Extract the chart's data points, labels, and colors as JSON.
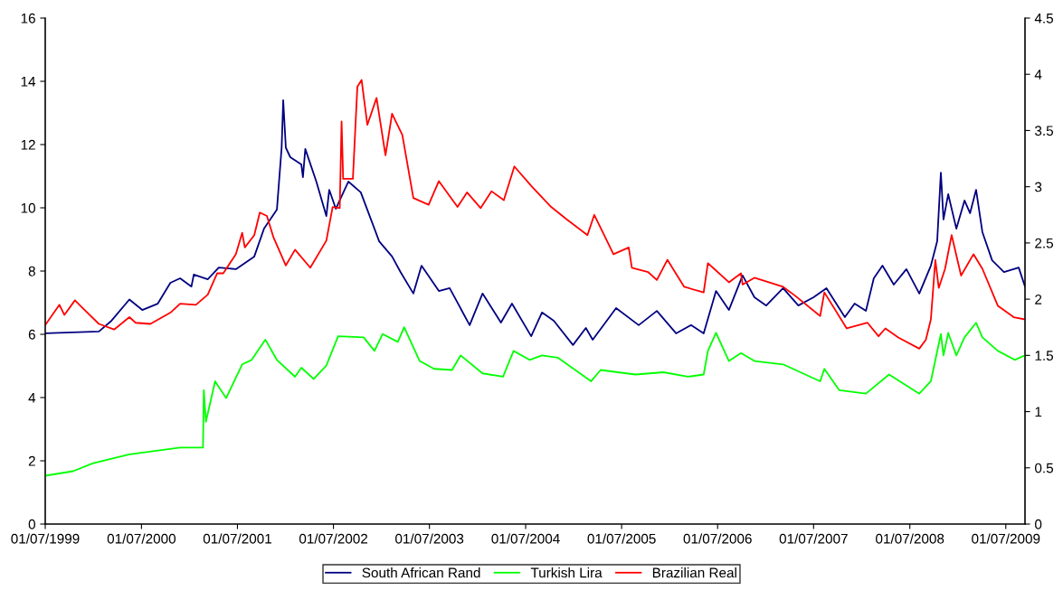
{
  "chart_data": {
    "type": "line",
    "xlim": [
      "1999-07-01",
      "2009-09-12"
    ],
    "xticks": [
      {
        "value": "1999-07-01",
        "label": "01/07/1999"
      },
      {
        "value": "2000-07-01",
        "label": "01/07/2000"
      },
      {
        "value": "2001-07-01",
        "label": "01/07/2001"
      },
      {
        "value": "2002-07-01",
        "label": "01/07/2002"
      },
      {
        "value": "2003-07-01",
        "label": "01/07/2003"
      },
      {
        "value": "2004-07-01",
        "label": "01/07/2004"
      },
      {
        "value": "2005-07-01",
        "label": "01/07/2005"
      },
      {
        "value": "2006-07-01",
        "label": "01/07/2006"
      },
      {
        "value": "2007-07-01",
        "label": "01/07/2007"
      },
      {
        "value": "2008-07-01",
        "label": "01/07/2008"
      },
      {
        "value": "2009-07-01",
        "label": "01/07/2009"
      }
    ],
    "ylim": [
      0,
      16
    ],
    "yticks": [
      0,
      2,
      4,
      6,
      8,
      10,
      12,
      14,
      16
    ],
    "y2lim": [
      0,
      4.5
    ],
    "y2ticks": [
      0,
      0.5,
      1,
      1.5,
      2,
      2.5,
      3,
      3.5,
      4,
      4.5
    ],
    "legend": "bottom",
    "grid": false,
    "series": [
      {
        "name": "South African Rand",
        "color": "#000080",
        "axis": "y",
        "x": [
          "1999-07-01",
          "2000-01-21",
          "2000-03-09",
          "2000-05-16",
          "2000-07-04",
          "2000-09-01",
          "2000-10-19",
          "2000-11-25",
          "2001-01-07",
          "2001-01-16",
          "2001-03-10",
          "2001-04-21",
          "2001-06-25",
          "2001-09-03",
          "2001-10-10",
          "2001-11-28",
          "2001-12-16",
          "2001-12-22",
          "2002-01-01",
          "2002-01-18",
          "2002-03-01",
          "2002-03-07",
          "2002-03-16",
          "2002-04-27",
          "2002-06-04",
          "2002-06-15",
          "2002-07-10",
          "2002-08-27",
          "2002-10-13",
          "2002-12-22",
          "2003-02-09",
          "2003-03-13",
          "2003-05-01",
          "2003-06-01",
          "2003-08-06",
          "2003-09-16",
          "2003-12-01",
          "2004-01-19",
          "2004-03-29",
          "2004-05-10",
          "2004-07-22",
          "2004-09-01",
          "2004-10-16",
          "2004-12-28",
          "2005-02-15",
          "2005-03-13",
          "2005-06-10",
          "2005-09-04",
          "2005-11-12",
          "2006-01-24",
          "2006-03-22",
          "2006-05-09",
          "2006-06-25",
          "2006-08-13",
          "2006-10-04",
          "2006-11-18",
          "2007-01-02",
          "2007-03-07",
          "2007-05-04",
          "2007-07-01",
          "2007-08-19",
          "2007-10-28",
          "2007-12-04",
          "2008-01-16",
          "2008-02-15",
          "2008-03-19",
          "2008-05-01",
          "2008-06-18",
          "2008-08-06",
          "2008-09-19",
          "2008-10-13",
          "2008-10-27",
          "2008-11-06",
          "2008-11-24",
          "2008-12-25",
          "2009-01-25",
          "2009-02-15",
          "2009-03-10",
          "2009-04-03",
          "2009-05-10",
          "2009-06-24",
          "2009-08-19",
          "2009-09-12"
        ],
        "values": [
          6.03,
          6.09,
          6.43,
          7.1,
          6.77,
          6.97,
          7.63,
          7.77,
          7.51,
          7.89,
          7.74,
          8.11,
          8.06,
          8.46,
          9.34,
          9.94,
          11.9,
          13.4,
          11.9,
          11.6,
          11.37,
          10.97,
          11.86,
          10.83,
          9.74,
          10.57,
          9.97,
          10.83,
          10.49,
          8.94,
          8.46,
          7.97,
          7.29,
          8.17,
          7.37,
          7.46,
          6.29,
          7.29,
          6.37,
          6.97,
          5.94,
          6.69,
          6.43,
          5.66,
          6.2,
          5.83,
          6.83,
          6.29,
          6.74,
          6.03,
          6.29,
          6.03,
          7.37,
          6.77,
          7.86,
          7.17,
          6.91,
          7.46,
          6.91,
          7.17,
          7.46,
          6.54,
          6.97,
          6.74,
          7.77,
          8.17,
          7.57,
          8.06,
          7.29,
          8.17,
          8.94,
          11.11,
          9.63,
          10.43,
          9.34,
          10.23,
          9.83,
          10.57,
          9.23,
          8.34,
          7.97,
          8.11,
          7.51
        ]
      },
      {
        "name": "Turkish Lira",
        "color": "#00ff00",
        "axis": "y2",
        "x": [
          "1999-07-01",
          "1999-10-15",
          "1999-12-28",
          "2000-05-16",
          "2000-11-25",
          "2001-02-20",
          "2001-02-23",
          "2001-03-03",
          "2001-04-07",
          "2001-05-19",
          "2001-07-19",
          "2001-08-24",
          "2001-10-15",
          "2001-11-28",
          "2002-02-05",
          "2002-03-01",
          "2002-04-17",
          "2002-06-04",
          "2002-07-19",
          "2002-10-24",
          "2002-12-04",
          "2003-01-04",
          "2003-03-03",
          "2003-03-27",
          "2003-05-25",
          "2003-07-19",
          "2003-09-25",
          "2003-10-28",
          "2004-01-19",
          "2004-04-06",
          "2004-05-16",
          "2004-07-16",
          "2004-09-01",
          "2004-10-31",
          "2005-03-07",
          "2005-04-12",
          "2005-08-22",
          "2005-12-07",
          "2006-03-10",
          "2006-05-09",
          "2006-05-25",
          "2006-06-25",
          "2006-08-13",
          "2006-09-28",
          "2006-11-18",
          "2007-03-07",
          "2007-07-26",
          "2007-08-11",
          "2007-10-07",
          "2008-01-16",
          "2008-04-13",
          "2008-08-06",
          "2008-09-19",
          "2008-10-27",
          "2008-11-06",
          "2008-11-24",
          "2008-12-25",
          "2009-01-25",
          "2009-03-10",
          "2009-04-03",
          "2009-06-01",
          "2009-08-04",
          "2009-09-12"
        ],
        "values": [
          0.43,
          0.47,
          0.54,
          0.62,
          0.68,
          0.68,
          1.19,
          0.91,
          1.27,
          1.12,
          1.42,
          1.46,
          1.64,
          1.46,
          1.31,
          1.39,
          1.29,
          1.41,
          1.67,
          1.66,
          1.54,
          1.69,
          1.62,
          1.75,
          1.45,
          1.38,
          1.37,
          1.5,
          1.34,
          1.31,
          1.54,
          1.46,
          1.5,
          1.48,
          1.27,
          1.37,
          1.33,
          1.35,
          1.31,
          1.33,
          1.54,
          1.7,
          1.45,
          1.52,
          1.45,
          1.42,
          1.27,
          1.38,
          1.19,
          1.16,
          1.33,
          1.16,
          1.27,
          1.69,
          1.5,
          1.7,
          1.5,
          1.66,
          1.79,
          1.66,
          1.54,
          1.46,
          1.5
        ]
      },
      {
        "name": "Brazilian Real",
        "color": "#ff0000",
        "axis": "y2",
        "x": [
          "1999-07-01",
          "1999-08-24",
          "1999-09-12",
          "1999-10-22",
          "1999-11-21",
          "2000-01-21",
          "2000-03-19",
          "2000-05-16",
          "2000-06-09",
          "2000-08-04",
          "2000-10-19",
          "2000-11-25",
          "2001-01-24",
          "2001-03-10",
          "2001-04-15",
          "2001-05-08",
          "2001-06-25",
          "2001-07-19",
          "2001-07-29",
          "2001-09-03",
          "2001-09-24",
          "2001-10-21",
          "2001-11-15",
          "2002-01-01",
          "2002-02-05",
          "2002-04-04",
          "2002-06-04",
          "2002-06-28",
          "2002-07-25",
          "2002-08-01",
          "2002-08-07",
          "2002-09-13",
          "2002-09-30",
          "2002-10-16",
          "2002-11-07",
          "2002-12-12",
          "2003-01-15",
          "2003-02-09",
          "2003-03-20",
          "2003-05-01",
          "2003-06-28",
          "2003-08-06",
          "2003-10-16",
          "2003-11-21",
          "2004-01-12",
          "2004-02-22",
          "2004-04-09",
          "2004-05-19",
          "2004-07-25",
          "2004-10-06",
          "2004-12-04",
          "2005-02-21",
          "2005-03-19",
          "2005-05-31",
          "2005-07-28",
          "2005-08-09",
          "2005-10-10",
          "2005-11-12",
          "2005-12-22",
          "2006-02-24",
          "2006-05-09",
          "2006-05-25",
          "2006-08-13",
          "2006-09-28",
          "2006-10-04",
          "2006-11-18",
          "2007-03-07",
          "2007-04-22",
          "2007-07-26",
          "2007-08-11",
          "2007-11-04",
          "2008-01-22",
          "2008-03-04",
          "2008-03-30",
          "2008-05-18",
          "2008-08-06",
          "2008-08-31",
          "2008-09-19",
          "2008-10-06",
          "2008-10-19",
          "2008-11-12",
          "2008-12-07",
          "2009-01-12",
          "2009-02-28",
          "2009-04-03",
          "2009-06-01",
          "2009-07-31",
          "2009-09-12"
        ],
        "values": [
          1.77,
          1.95,
          1.86,
          1.99,
          1.92,
          1.78,
          1.73,
          1.84,
          1.79,
          1.78,
          1.88,
          1.96,
          1.95,
          2.04,
          2.23,
          2.23,
          2.4,
          2.59,
          2.46,
          2.57,
          2.77,
          2.74,
          2.55,
          2.3,
          2.44,
          2.28,
          2.52,
          2.82,
          2.81,
          3.58,
          3.07,
          3.07,
          3.89,
          3.95,
          3.55,
          3.79,
          3.28,
          3.65,
          3.46,
          2.9,
          2.84,
          3.05,
          2.82,
          2.95,
          2.81,
          2.96,
          2.88,
          3.18,
          3.0,
          2.82,
          2.71,
          2.57,
          2.75,
          2.4,
          2.46,
          2.28,
          2.24,
          2.17,
          2.35,
          2.11,
          2.06,
          2.32,
          2.15,
          2.23,
          2.13,
          2.19,
          2.11,
          2.03,
          1.85,
          2.06,
          1.74,
          1.79,
          1.67,
          1.74,
          1.66,
          1.56,
          1.64,
          1.82,
          2.35,
          2.1,
          2.27,
          2.57,
          2.21,
          2.4,
          2.27,
          1.94,
          1.84,
          1.82
        ]
      }
    ]
  }
}
